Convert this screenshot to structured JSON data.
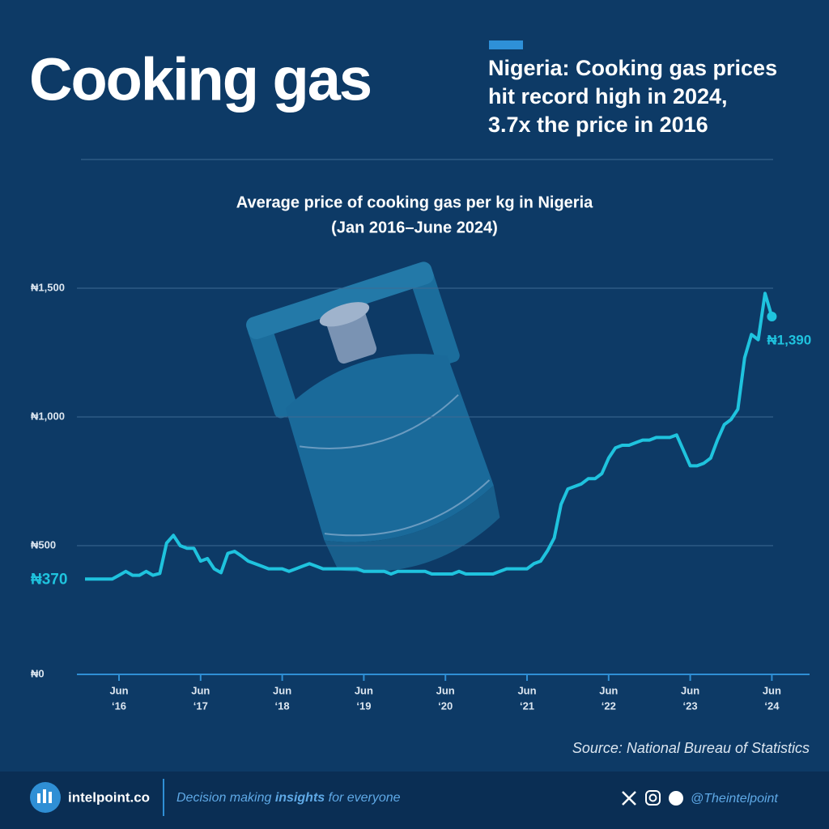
{
  "header": {
    "title": "Cooking gas",
    "headline": [
      "Nigeria: Cooking gas prices",
      "hit record high in 2024,",
      "3.7x the price in 2016"
    ]
  },
  "chart_data": {
    "type": "line",
    "title": "Average price of cooking gas per kg in Nigeria",
    "subtitle": "(Jan 2016–June 2024)",
    "x": [
      "2016-01",
      "2016-02",
      "2016-03",
      "2016-04",
      "2016-05",
      "2016-06",
      "2016-07",
      "2016-08",
      "2016-09",
      "2016-10",
      "2016-11",
      "2016-12",
      "2017-01",
      "2017-02",
      "2017-03",
      "2017-04",
      "2017-05",
      "2017-06",
      "2017-07",
      "2017-08",
      "2017-09",
      "2017-10",
      "2017-11",
      "2017-12",
      "2018-01",
      "2018-02",
      "2018-03",
      "2018-04",
      "2018-05",
      "2018-06",
      "2018-07",
      "2018-08",
      "2018-09",
      "2018-10",
      "2018-11",
      "2018-12",
      "2019-01",
      "2019-02",
      "2019-03",
      "2019-04",
      "2019-05",
      "2019-06",
      "2019-07",
      "2019-08",
      "2019-09",
      "2019-10",
      "2019-11",
      "2019-12",
      "2020-01",
      "2020-02",
      "2020-03",
      "2020-04",
      "2020-05",
      "2020-06",
      "2020-07",
      "2020-08",
      "2020-09",
      "2020-10",
      "2020-11",
      "2020-12",
      "2021-01",
      "2021-02",
      "2021-03",
      "2021-04",
      "2021-05",
      "2021-06",
      "2021-07",
      "2021-08",
      "2021-09",
      "2021-10",
      "2021-11",
      "2021-12",
      "2022-01",
      "2022-02",
      "2022-03",
      "2022-04",
      "2022-05",
      "2022-06",
      "2022-07",
      "2022-08",
      "2022-09",
      "2022-10",
      "2022-11",
      "2022-12",
      "2023-01",
      "2023-02",
      "2023-03",
      "2023-04",
      "2023-05",
      "2023-06",
      "2023-07",
      "2023-08",
      "2023-09",
      "2023-10",
      "2023-11",
      "2023-12",
      "2024-01",
      "2024-02",
      "2024-03",
      "2024-04",
      "2024-05",
      "2024-06"
    ],
    "values": [
      370,
      370,
      370,
      370,
      370,
      385,
      400,
      385,
      385,
      400,
      385,
      392,
      510,
      540,
      500,
      490,
      490,
      440,
      450,
      410,
      395,
      470,
      478,
      460,
      440,
      430,
      420,
      410,
      410,
      410,
      400,
      410,
      420,
      430,
      420,
      410,
      410,
      410,
      410,
      410,
      410,
      400,
      400,
      400,
      400,
      390,
      400,
      400,
      400,
      400,
      400,
      390,
      390,
      390,
      390,
      400,
      390,
      390,
      390,
      390,
      390,
      400,
      410,
      410,
      410,
      410,
      430,
      440,
      480,
      530,
      660,
      720,
      730,
      740,
      760,
      760,
      780,
      840,
      880,
      890,
      890,
      900,
      910,
      910,
      920,
      920,
      920,
      930,
      870,
      810,
      810,
      820,
      840,
      910,
      970,
      990,
      1030,
      1230,
      1320,
      1300,
      1480,
      1390
    ],
    "color": "#1fc3de",
    "ylim": [
      0,
      1500
    ],
    "yticks": [
      {
        "value": 0,
        "label": "₦0"
      },
      {
        "value": 500,
        "label": "₦500"
      },
      {
        "value": 1000,
        "label": "₦1,000"
      },
      {
        "value": 1500,
        "label": "₦1,500"
      }
    ],
    "xticks": [
      {
        "value": "2016-06",
        "label": [
          "Jun",
          "‘16"
        ]
      },
      {
        "value": "2017-06",
        "label": [
          "Jun",
          "‘17"
        ]
      },
      {
        "value": "2018-06",
        "label": [
          "Jun",
          "‘18"
        ]
      },
      {
        "value": "2019-06",
        "label": [
          "Jun",
          "‘19"
        ]
      },
      {
        "value": "2020-06",
        "label": [
          "Jun",
          "‘20"
        ]
      },
      {
        "value": "2021-06",
        "label": [
          "Jun",
          "‘21"
        ]
      },
      {
        "value": "2022-06",
        "label": [
          "Jun",
          "‘22"
        ]
      },
      {
        "value": "2023-06",
        "label": [
          "Jun",
          "‘23"
        ]
      },
      {
        "value": "2024-06",
        "label": [
          "Jun",
          "‘24"
        ]
      }
    ],
    "grid": true,
    "annotations": [
      {
        "label": "₦370",
        "value": 370,
        "x": "2016-01"
      },
      {
        "label": "₦1,390",
        "value": 1390,
        "x": "2024-06"
      }
    ],
    "source": "Source: National Bureau of Statistics"
  },
  "footer": {
    "brand": "intelpoint.co",
    "tagline": [
      "Decision making ",
      "insights",
      " for everyone"
    ],
    "handle": "@Theintelpoint"
  }
}
